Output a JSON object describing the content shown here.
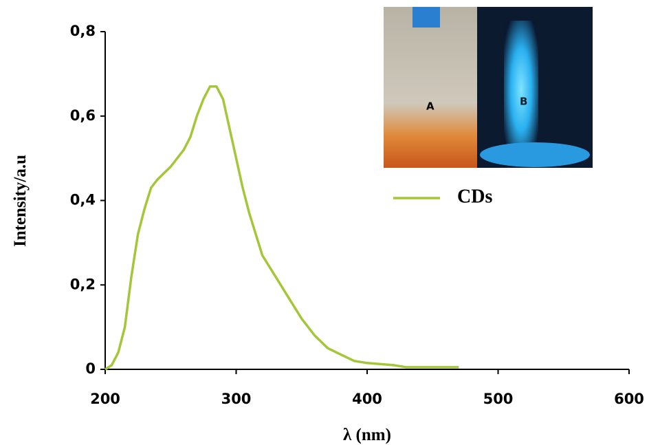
{
  "chart_data": {
    "type": "line",
    "x_label": "λ (nm)",
    "y_label": "Intensity/a.u",
    "x": [
      200,
      205,
      210,
      215,
      220,
      225,
      230,
      235,
      240,
      250,
      260,
      265,
      270,
      275,
      280,
      285,
      290,
      295,
      300,
      305,
      310,
      315,
      320,
      330,
      340,
      350,
      360,
      370,
      380,
      390,
      400,
      420,
      430,
      470
    ],
    "series": [
      {
        "name": "CDs",
        "color": "#a4c639",
        "values": [
          0,
          0.01,
          0.04,
          0.1,
          0.22,
          0.32,
          0.38,
          0.43,
          0.45,
          0.48,
          0.52,
          0.55,
          0.6,
          0.64,
          0.67,
          0.67,
          0.64,
          0.57,
          0.5,
          0.43,
          0.37,
          0.32,
          0.27,
          0.22,
          0.17,
          0.12,
          0.08,
          0.05,
          0.035,
          0.02,
          0.015,
          0.01,
          0.005,
          0.005
        ]
      }
    ],
    "xlim": [
      200,
      600
    ],
    "xticks": [
      200,
      300,
      400,
      500,
      600
    ],
    "ylim": [
      0,
      0.8
    ],
    "yticks": [
      0,
      {
        "value": 0.2,
        "label": "0,2"
      },
      {
        "value": 0.4,
        "label": "0,4"
      },
      {
        "value": 0.6,
        "label": "0,6"
      },
      {
        "value": 0.8,
        "label": "0,8"
      }
    ],
    "grid": false,
    "legend": "upper right",
    "inset_labels": [
      "A",
      "B"
    ]
  }
}
